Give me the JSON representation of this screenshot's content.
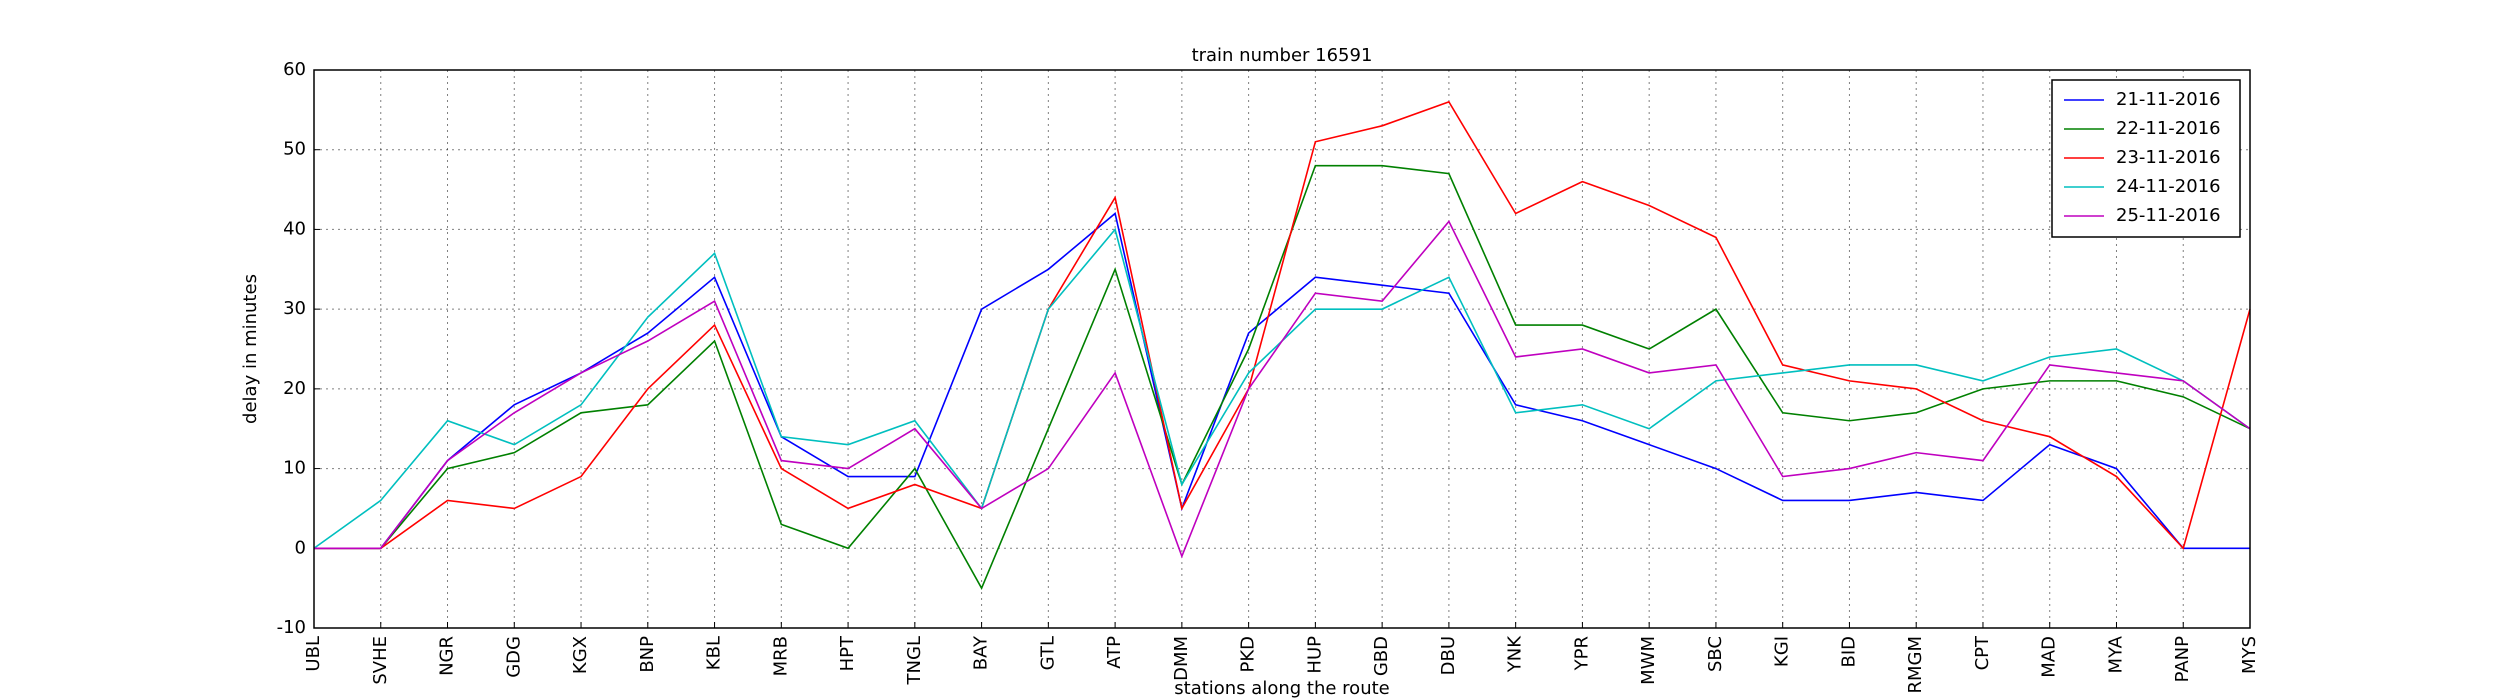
{
  "chart_data": {
    "type": "line",
    "title": "train number 16591",
    "xlabel": "stations along the route",
    "ylabel": "delay in minutes",
    "categories": [
      "UBL",
      "SVHE",
      "NGR",
      "GDG",
      "KGX",
      "BNP",
      "KBL",
      "MRB",
      "HPT",
      "TNGL",
      "BAY",
      "GTL",
      "ATP",
      "DMM",
      "PKD",
      "HUP",
      "GBD",
      "DBU",
      "YNK",
      "YPR",
      "MWM",
      "SBC",
      "KGI",
      "BID",
      "RMGM",
      "CPT",
      "MAD",
      "MYA",
      "PANP",
      "MYS"
    ],
    "series": [
      {
        "name": "21-11-2016",
        "color": "#0000ff",
        "values": [
          0,
          0,
          11,
          18,
          22,
          27,
          34,
          14,
          9,
          9,
          30,
          35,
          42,
          5,
          27,
          34,
          33,
          32,
          18,
          16,
          13,
          10,
          6,
          6,
          7,
          6,
          13,
          10,
          0,
          0
        ]
      },
      {
        "name": "22-11-2016",
        "color": "#008000",
        "values": [
          0,
          0,
          10,
          12,
          17,
          18,
          26,
          3,
          0,
          10,
          -5,
          15,
          35,
          8,
          25,
          48,
          48,
          47,
          28,
          28,
          25,
          30,
          17,
          16,
          17,
          20,
          21,
          21,
          19,
          15
        ]
      },
      {
        "name": "23-11-2016",
        "color": "#ff0000",
        "values": [
          0,
          0,
          6,
          5,
          9,
          20,
          28,
          10,
          5,
          8,
          5,
          30,
          44,
          5,
          20,
          51,
          53,
          56,
          42,
          46,
          43,
          39,
          23,
          21,
          20,
          16,
          14,
          9,
          0,
          30
        ]
      },
      {
        "name": "24-11-2016",
        "color": "#00bfbf",
        "values": [
          0,
          6,
          16,
          13,
          18,
          29,
          37,
          14,
          13,
          16,
          5,
          30,
          40,
          8,
          22,
          30,
          30,
          34,
          17,
          18,
          15,
          21,
          22,
          23,
          23,
          21,
          24,
          25,
          21,
          15
        ]
      },
      {
        "name": "25-11-2016",
        "color": "#bf00bf",
        "values": [
          0,
          0,
          11,
          17,
          22,
          26,
          31,
          11,
          10,
          15,
          5,
          10,
          22,
          -1,
          20,
          32,
          31,
          41,
          24,
          25,
          22,
          23,
          9,
          10,
          12,
          11,
          23,
          22,
          21,
          15
        ]
      }
    ],
    "ylim": [
      -10,
      60
    ],
    "yticks": [
      -10,
      0,
      10,
      20,
      30,
      40,
      50,
      60
    ],
    "grid": true,
    "legend": "upper right"
  }
}
